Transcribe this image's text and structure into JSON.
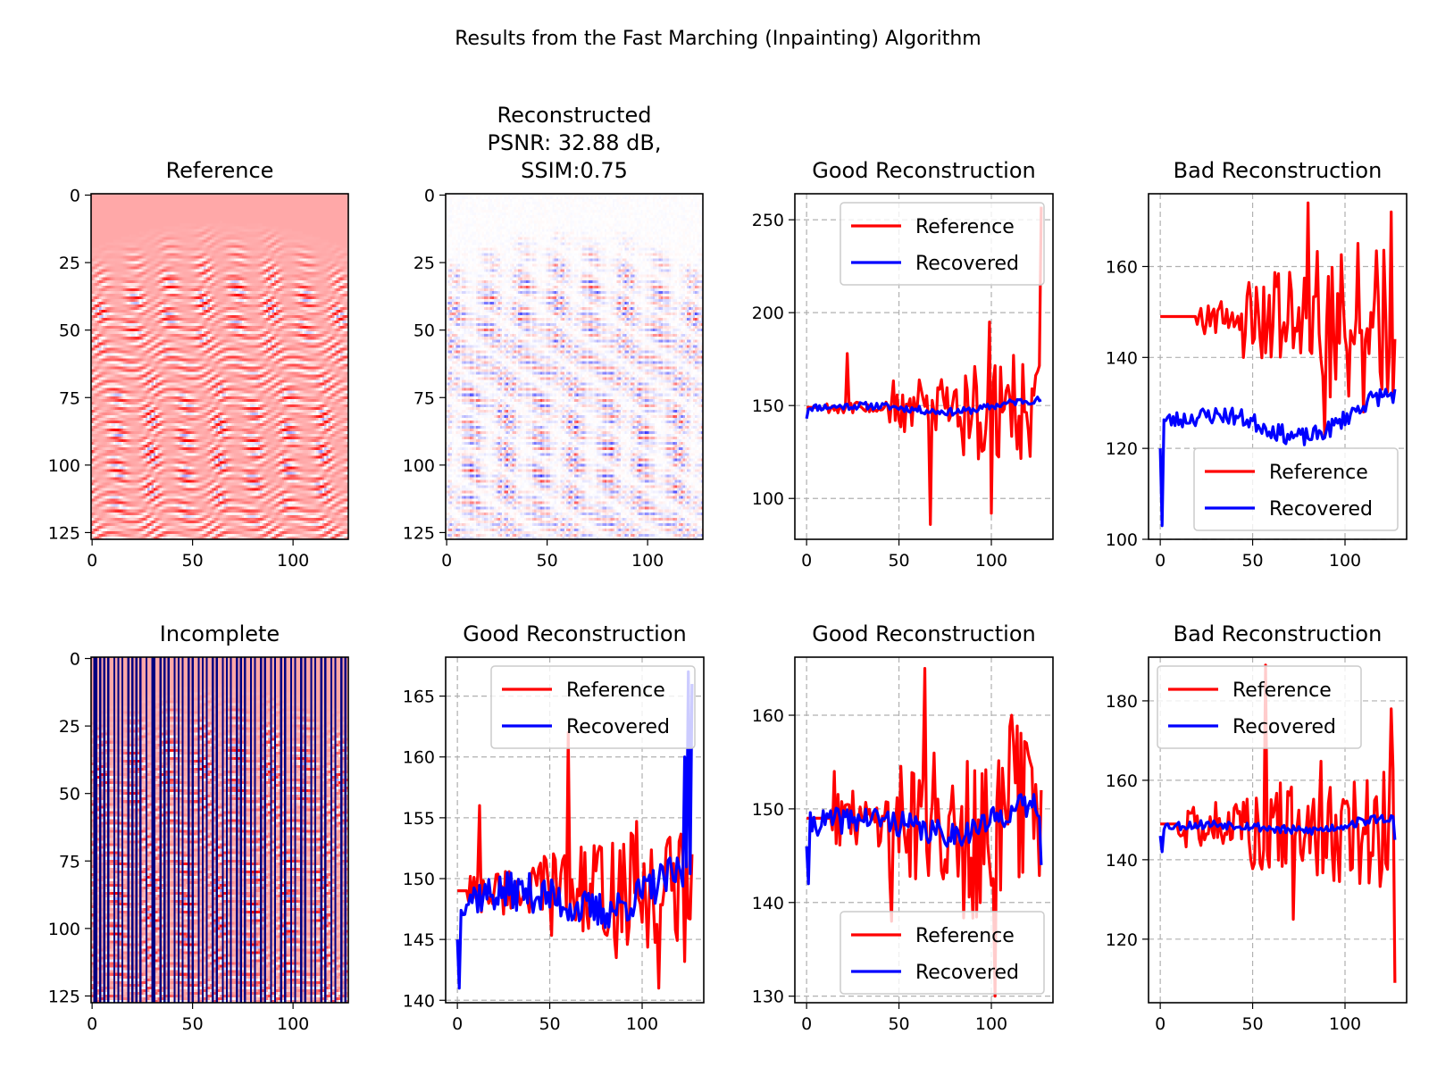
{
  "figure": {
    "suptitle": "Results from the Fast Marching (Inpainting) Algorithm"
  },
  "colors": {
    "reference": "#ff0000",
    "recovered": "#0000ff",
    "grid": "#b0b0b0",
    "seismic_background": "#ffa8a8"
  },
  "chart_data": [
    {
      "id": "reference-image",
      "type": "heatmap",
      "title": "Reference",
      "colormap": "bwr",
      "shape": [
        128,
        128
      ],
      "xlim": [
        0,
        127
      ],
      "ylim": [
        127,
        0
      ],
      "xticks": [
        0,
        50,
        100
      ],
      "yticks": [
        0,
        25,
        50,
        75,
        100,
        125
      ],
      "description_values": {
        "first_arrival_row_edges": 20,
        "first_arrival_row_center": 10
      }
    },
    {
      "id": "reconstructed-image",
      "type": "heatmap",
      "title_lines": [
        "Reconstructed",
        "PSNR: 32.88 dB,",
        "SSIM:0.75"
      ],
      "colormap": "bwr",
      "shape": [
        128,
        128
      ],
      "xlim": [
        0,
        127
      ],
      "ylim": [
        127,
        0
      ],
      "xticks": [
        0,
        50,
        100
      ],
      "yticks": [
        0,
        25,
        50,
        75,
        100,
        125
      ],
      "psnr_db": 32.88,
      "ssim": 0.75
    },
    {
      "id": "incomplete-image",
      "type": "heatmap",
      "title": "Incomplete",
      "colormap": "bwr",
      "shape": [
        128,
        128
      ],
      "xlim": [
        0,
        127
      ],
      "ylim": [
        127,
        0
      ],
      "xticks": [
        0,
        50,
        100
      ],
      "yticks": [
        0,
        25,
        50,
        75,
        100,
        125
      ],
      "missing_columns": [
        1,
        2,
        4,
        6,
        8,
        11,
        13,
        15,
        18,
        20,
        22,
        24,
        27,
        30,
        31,
        34,
        36,
        38,
        41,
        43,
        45,
        48,
        50,
        53,
        55,
        57,
        60,
        62,
        65,
        67,
        69,
        72,
        74,
        76,
        79,
        81,
        84,
        86,
        89,
        91,
        94,
        96,
        99,
        101,
        104,
        106,
        109,
        111,
        114,
        116,
        119,
        121,
        124,
        126
      ]
    },
    {
      "id": "line-r0c2",
      "type": "line",
      "title": "Good Reconstruction",
      "legend": "upper-right",
      "series": [
        {
          "name": "Reference"
        },
        {
          "name": "Recovered"
        }
      ],
      "xlim": [
        -6.35,
        133.35
      ],
      "ylim": [
        78,
        264
      ],
      "xticks": [
        0,
        50,
        100
      ],
      "yticks": [
        100,
        150,
        200,
        250
      ],
      "grid": true,
      "spec": {
        "ref": {
          "base": 149,
          "flat": 8,
          "amp": [
            3,
            15,
            30
          ],
          "spikes": [
            [
              22,
              178
            ],
            [
              67,
              86
            ],
            [
              100,
              92
            ],
            [
              127,
              257
            ],
            [
              99,
              195
            ],
            [
              112,
              177
            ]
          ]
        },
        "rec": {
          "base": 149,
          "drift": 4,
          "noise": 2,
          "start": 143,
          "endValue": 153,
          "seed": 11
        }
      }
    },
    {
      "id": "line-r0c3",
      "type": "line",
      "title": "Bad Reconstruction",
      "legend": "lower-right",
      "series": [
        {
          "name": "Reference"
        },
        {
          "name": "Recovered"
        }
      ],
      "xlim": [
        -6.35,
        133.35
      ],
      "ylim": [
        100,
        176
      ],
      "xticks": [
        0,
        50,
        100
      ],
      "yticks": [
        100,
        120,
        140,
        160
      ],
      "grid": true,
      "spec": {
        "ref": {
          "base": 149,
          "flat": 20,
          "amp": [
            4,
            10,
            18
          ],
          "spikes": [
            [
              80,
              174
            ],
            [
              89,
              123
            ],
            [
              110,
              128
            ],
            [
              125,
              172
            ],
            [
              120,
              133
            ]
          ]
        },
        "rec": {
          "base": 126,
          "drift": 6,
          "noise": 2,
          "start": 120,
          "dip": [
            1,
            103
          ],
          "endValue": 133,
          "seed": 23
        }
      }
    },
    {
      "id": "line-r1c1",
      "type": "line",
      "title": "Good Reconstruction",
      "legend": "upper-right",
      "series": [
        {
          "name": "Reference"
        },
        {
          "name": "Recovered"
        }
      ],
      "xlim": [
        -6.35,
        133.35
      ],
      "ylim": [
        139.8,
        168.2
      ],
      "xticks": [
        0,
        50,
        100
      ],
      "yticks": [
        140,
        145,
        150,
        155,
        160,
        165
      ],
      "grid": true,
      "spec": {
        "ref": {
          "base": 149,
          "flat": 6,
          "amp": [
            2,
            4,
            6
          ],
          "spikes": [
            [
              12,
              156
            ],
            [
              60,
              162
            ],
            [
              109,
              141
            ],
            [
              127,
              152
            ]
          ]
        },
        "rec": {
          "base": 148.5,
          "drift": 2,
          "noise": 1.6,
          "start": 145,
          "dip": [
            1,
            141
          ],
          "tail": [
            [
              123,
              160
            ],
            [
              125,
              167
            ],
            [
              127,
              166
            ]
          ],
          "seed": 37
        }
      }
    },
    {
      "id": "line-r1c2",
      "type": "line",
      "title": "Good Reconstruction",
      "legend": "lower-right",
      "series": [
        {
          "name": "Reference"
        },
        {
          "name": "Recovered"
        }
      ],
      "xlim": [
        -6.35,
        133.35
      ],
      "ylim": [
        129.3,
        166.2
      ],
      "xticks": [
        0,
        50,
        100
      ],
      "yticks": [
        130,
        140,
        150,
        160
      ],
      "grid": true,
      "spec": {
        "ref": {
          "base": 149,
          "flat": 14,
          "amp": [
            3,
            7,
            11
          ],
          "spikes": [
            [
              15,
              154
            ],
            [
              46,
              138
            ],
            [
              64,
              165
            ],
            [
              102,
              130
            ],
            [
              111,
              160
            ],
            [
              127,
              152
            ]
          ]
        },
        "rec": {
          "base": 148.5,
          "drift": 2,
          "noise": 1.4,
          "start": 146,
          "dip": [
            1,
            142
          ],
          "endValue": 144,
          "seed": 41
        }
      }
    },
    {
      "id": "line-r1c3",
      "type": "line",
      "title": "Bad Reconstruction",
      "legend": "upper-left",
      "series": [
        {
          "name": "Reference"
        },
        {
          "name": "Recovered"
        }
      ],
      "xlim": [
        -6.35,
        133.35
      ],
      "ylim": [
        104,
        191
      ],
      "xticks": [
        0,
        50,
        100
      ],
      "yticks": [
        120,
        140,
        160,
        180
      ],
      "grid": true,
      "spec": {
        "ref": {
          "base": 149,
          "flat": 10,
          "amp": [
            6,
            12,
            16
          ],
          "spikes": [
            [
              57,
              189
            ],
            [
              72,
              125
            ],
            [
              127,
              109
            ],
            [
              125,
              178
            ]
          ]
        },
        "rec": {
          "base": 148.5,
          "drift": 2,
          "noise": 1.2,
          "start": 146,
          "dip": [
            1,
            142
          ],
          "endValue": 145,
          "seed": 53
        }
      }
    }
  ]
}
